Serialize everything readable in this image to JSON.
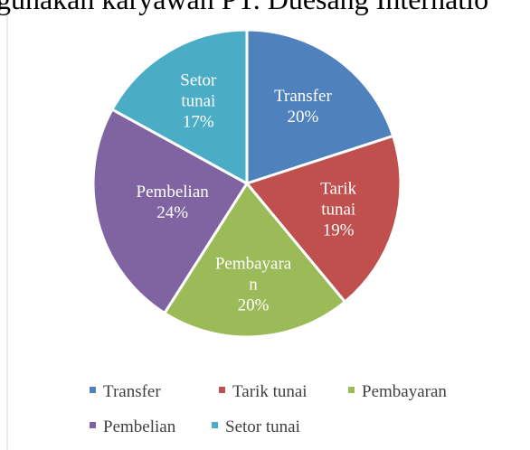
{
  "chart_data": {
    "type": "pie",
    "title": "gunakan karyawan PT. Duesang Internatio",
    "categories": [
      "Transfer",
      "Tarik tunai",
      "Pembayaran",
      "Pembelian",
      "Setor tunai"
    ],
    "values": [
      20,
      19,
      20,
      24,
      17
    ],
    "value_labels": [
      "20%",
      "19%",
      "20%",
      "24%",
      "17%"
    ],
    "colors": [
      "#4f81bd",
      "#c0504d",
      "#9bbb59",
      "#8064a2",
      "#4bacc6"
    ],
    "legend": "bottom"
  }
}
